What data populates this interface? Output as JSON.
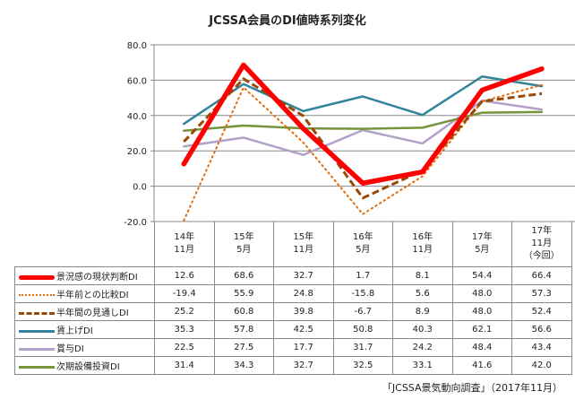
{
  "chart_data": {
    "type": "line",
    "title": "JCSSA会員のDI値時系列変化",
    "categories": [
      "14年\n11月",
      "15年\n5月",
      "15年\n11月",
      "16年\n5月",
      "16年\n11月",
      "17年\n5月",
      "17年\n11月\n（今回）"
    ],
    "ylim": [
      -20,
      80
    ],
    "yticks": [
      "80.0",
      "60.0",
      "40.0",
      "20.0",
      "0.0",
      "-20.0"
    ],
    "ytick_values": [
      80,
      60,
      40,
      20,
      0,
      -20
    ],
    "grid": true,
    "legend": "data-table",
    "series": [
      {
        "name": "景況感の現状判断DI",
        "color": "#ff0000",
        "style": "solid-thick",
        "values": [
          12.6,
          68.6,
          32.7,
          1.7,
          8.1,
          54.4,
          66.4
        ],
        "labels": [
          "12.6",
          "68.6",
          "32.7",
          "1.7",
          "8.1",
          "54.4",
          "66.4"
        ]
      },
      {
        "name": "半年前との比較DI",
        "color": "#e46c0a",
        "style": "dotted",
        "values": [
          -19.4,
          55.9,
          24.8,
          -15.8,
          5.6,
          48.0,
          57.3
        ],
        "labels": [
          "-19.4",
          "55.9",
          "24.8",
          "-15.8",
          "5.6",
          "48.0",
          "57.3"
        ]
      },
      {
        "name": "半年間の見通しDI",
        "color": "#984807",
        "style": "dashed",
        "values": [
          25.2,
          60.8,
          39.8,
          -6.7,
          8.9,
          48.0,
          52.4
        ],
        "labels": [
          "25.2",
          "60.8",
          "39.8",
          "-6.7",
          "8.9",
          "48.0",
          "52.4"
        ]
      },
      {
        "name": "賃上げDI",
        "color": "#31849b",
        "style": "solid",
        "values": [
          35.3,
          57.8,
          42.5,
          50.8,
          40.3,
          62.1,
          56.6
        ],
        "labels": [
          "35.3",
          "57.8",
          "42.5",
          "50.8",
          "40.3",
          "62.1",
          "56.6"
        ]
      },
      {
        "name": "賞与DI",
        "color": "#b3a2c7",
        "style": "solid",
        "values": [
          22.5,
          27.5,
          17.7,
          31.7,
          24.2,
          48.4,
          43.4
        ],
        "labels": [
          "22.5",
          "27.5",
          "17.7",
          "31.7",
          "24.2",
          "48.4",
          "43.4"
        ]
      },
      {
        "name": "次期設備投資DI",
        "color": "#77933c",
        "style": "solid",
        "values": [
          31.4,
          34.3,
          32.7,
          32.5,
          33.1,
          41.6,
          42.0
        ],
        "labels": [
          "31.4",
          "34.3",
          "32.7",
          "32.5",
          "33.1",
          "41.6",
          "42.0"
        ]
      }
    ]
  },
  "caption": "「JCSSA景気動向調査」（2017年11月）"
}
